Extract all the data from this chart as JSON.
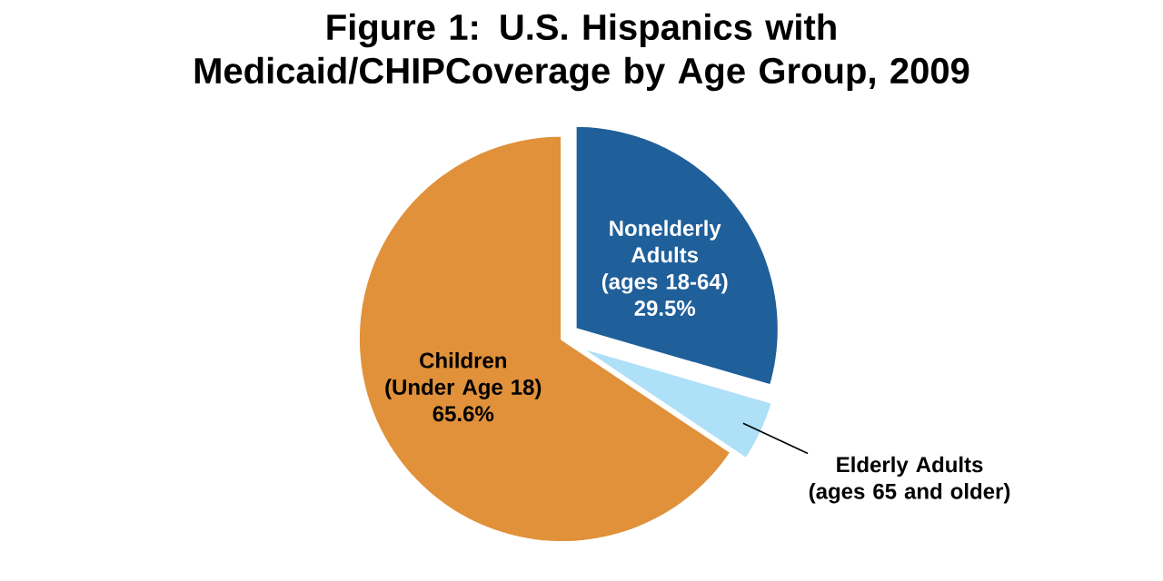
{
  "chart_data": {
    "type": "pie",
    "title": "Figure 1:  U.S. Hispanics with Medicaid/CHIPCoverage by Age Group, 2009",
    "categories": [
      "Children (Under Age 18)",
      "Nonelderly Adults (ages 18-64)",
      "Elderly Adults (ages 65 and older)"
    ],
    "values": [
      65.6,
      29.5,
      4.9
    ],
    "colors": [
      "#e0913a",
      "#1f5f9a",
      "#aee0f8"
    ],
    "value_labels": [
      "65.6%",
      "29.5%",
      null
    ]
  }
}
